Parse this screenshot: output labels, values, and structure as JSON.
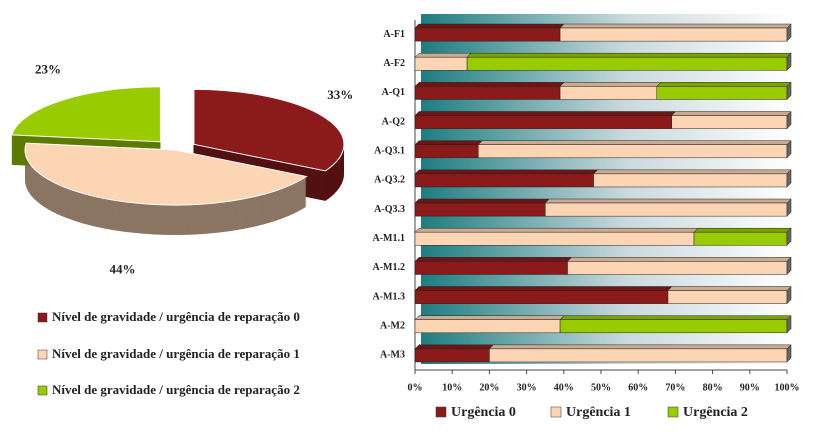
{
  "chart_data": [
    {
      "type": "pie",
      "categories": [
        "Nível de gravidade / urgência de reparação 0",
        "Nível de gravidade / urgência de reparação 1",
        "Nível de gravidade / urgência de reparação 2"
      ],
      "values": [
        33,
        44,
        23
      ],
      "value_labels": [
        "33%",
        "44%",
        "23%"
      ],
      "colors": [
        "#8b1a1a",
        "#fcd5b4",
        "#99cc00"
      ]
    },
    {
      "type": "bar",
      "orientation": "horizontal",
      "stacked": true,
      "categories": [
        "A-F1",
        "A-F2",
        "A-Q1",
        "A-Q2",
        "A-Q3.1",
        "A-Q3.2",
        "A-Q3.3",
        "A-M1.1",
        "A-M1.2",
        "A-M1.3",
        "A-M2",
        "A-M3"
      ],
      "series": [
        {
          "name": "Urgência 0",
          "color": "#8b1a1a",
          "values": [
            39,
            0,
            39,
            69,
            17,
            48,
            35,
            0,
            41,
            68,
            0,
            20
          ]
        },
        {
          "name": "Urgência 1",
          "color": "#fcd5b4",
          "values": [
            61,
            14,
            26,
            31,
            83,
            52,
            65,
            75,
            59,
            32,
            39,
            80
          ]
        },
        {
          "name": "Urgência 2",
          "color": "#99cc00",
          "values": [
            0,
            86,
            35,
            0,
            0,
            0,
            0,
            25,
            0,
            0,
            61,
            0
          ]
        }
      ],
      "xlim": [
        0,
        100
      ],
      "xticks": [
        {
          "value": 0,
          "label": "0%"
        },
        {
          "value": 10,
          "label": "10%"
        },
        {
          "value": 20,
          "label": "20%"
        },
        {
          "value": 30,
          "label": "30%"
        },
        {
          "value": 40,
          "label": "40%"
        },
        {
          "value": 50,
          "label": "50%"
        },
        {
          "value": 60,
          "label": "60%"
        },
        {
          "value": 70,
          "label": "70%"
        },
        {
          "value": 80,
          "label": "80%"
        },
        {
          "value": 90,
          "label": "90%"
        },
        {
          "value": 100,
          "label": "100%"
        }
      ]
    }
  ]
}
